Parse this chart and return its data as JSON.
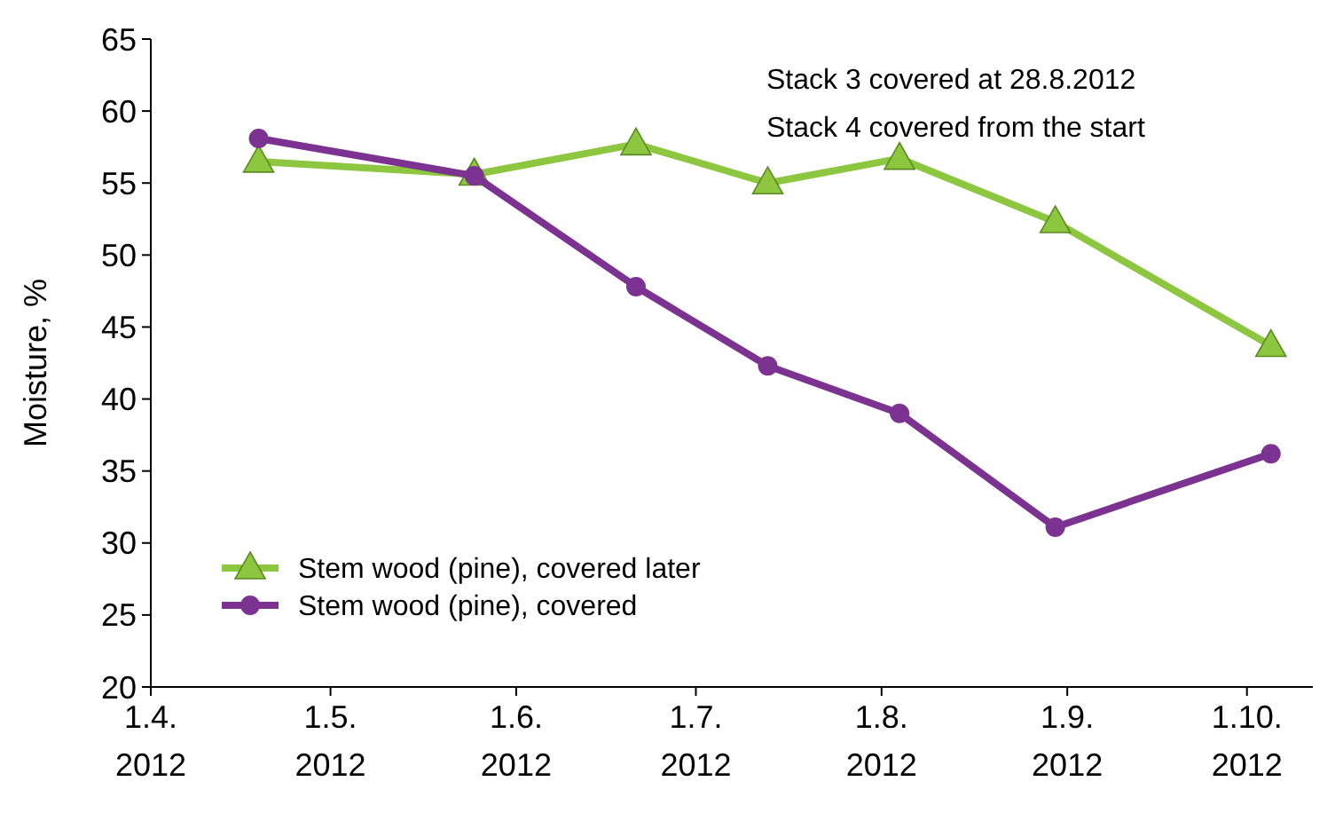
{
  "chart_data": {
    "type": "line",
    "ylabel": "Moisture, %",
    "x": [
      "2012-04-19",
      "2012-05-25",
      "2012-06-21",
      "2012-07-13",
      "2012-08-04",
      "2012-08-30",
      "2012-10-05"
    ],
    "xlim": [
      "2012-04-01",
      "2012-10-12"
    ],
    "xticks": [
      {
        "value": "2012-04-01",
        "label": "1.4.\n2012"
      },
      {
        "value": "2012-05-01",
        "label": "1.5.\n2012"
      },
      {
        "value": "2012-06-01",
        "label": "1.6.\n2012"
      },
      {
        "value": "2012-07-01",
        "label": "1.7.\n2012"
      },
      {
        "value": "2012-08-01",
        "label": "1.8.\n2012"
      },
      {
        "value": "2012-09-01",
        "label": "1.9.\n2012"
      },
      {
        "value": "2012-10-01",
        "label": "1.10.\n2012"
      }
    ],
    "ylim": [
      20,
      65
    ],
    "yticks": [
      20,
      25,
      30,
      35,
      40,
      45,
      50,
      55,
      60,
      65
    ],
    "grid": false,
    "legend": "bottom left",
    "series": [
      {
        "name": "Stem wood (pine), covered later",
        "color": "#8dc63f",
        "marker": "triangle",
        "values": [
          56.5,
          55.6,
          57.7,
          55,
          56.7,
          52.3,
          43.7
        ]
      },
      {
        "name": "Stem wood (pine), covered",
        "color": "#7b3291",
        "marker": "circle",
        "values": [
          58.1,
          55.5,
          47.8,
          42.3,
          39,
          31.1,
          36.2
        ]
      }
    ],
    "annotations": [
      "Stack 3 covered at 28.8.2012",
      "Stack 4 covered from the start"
    ]
  }
}
